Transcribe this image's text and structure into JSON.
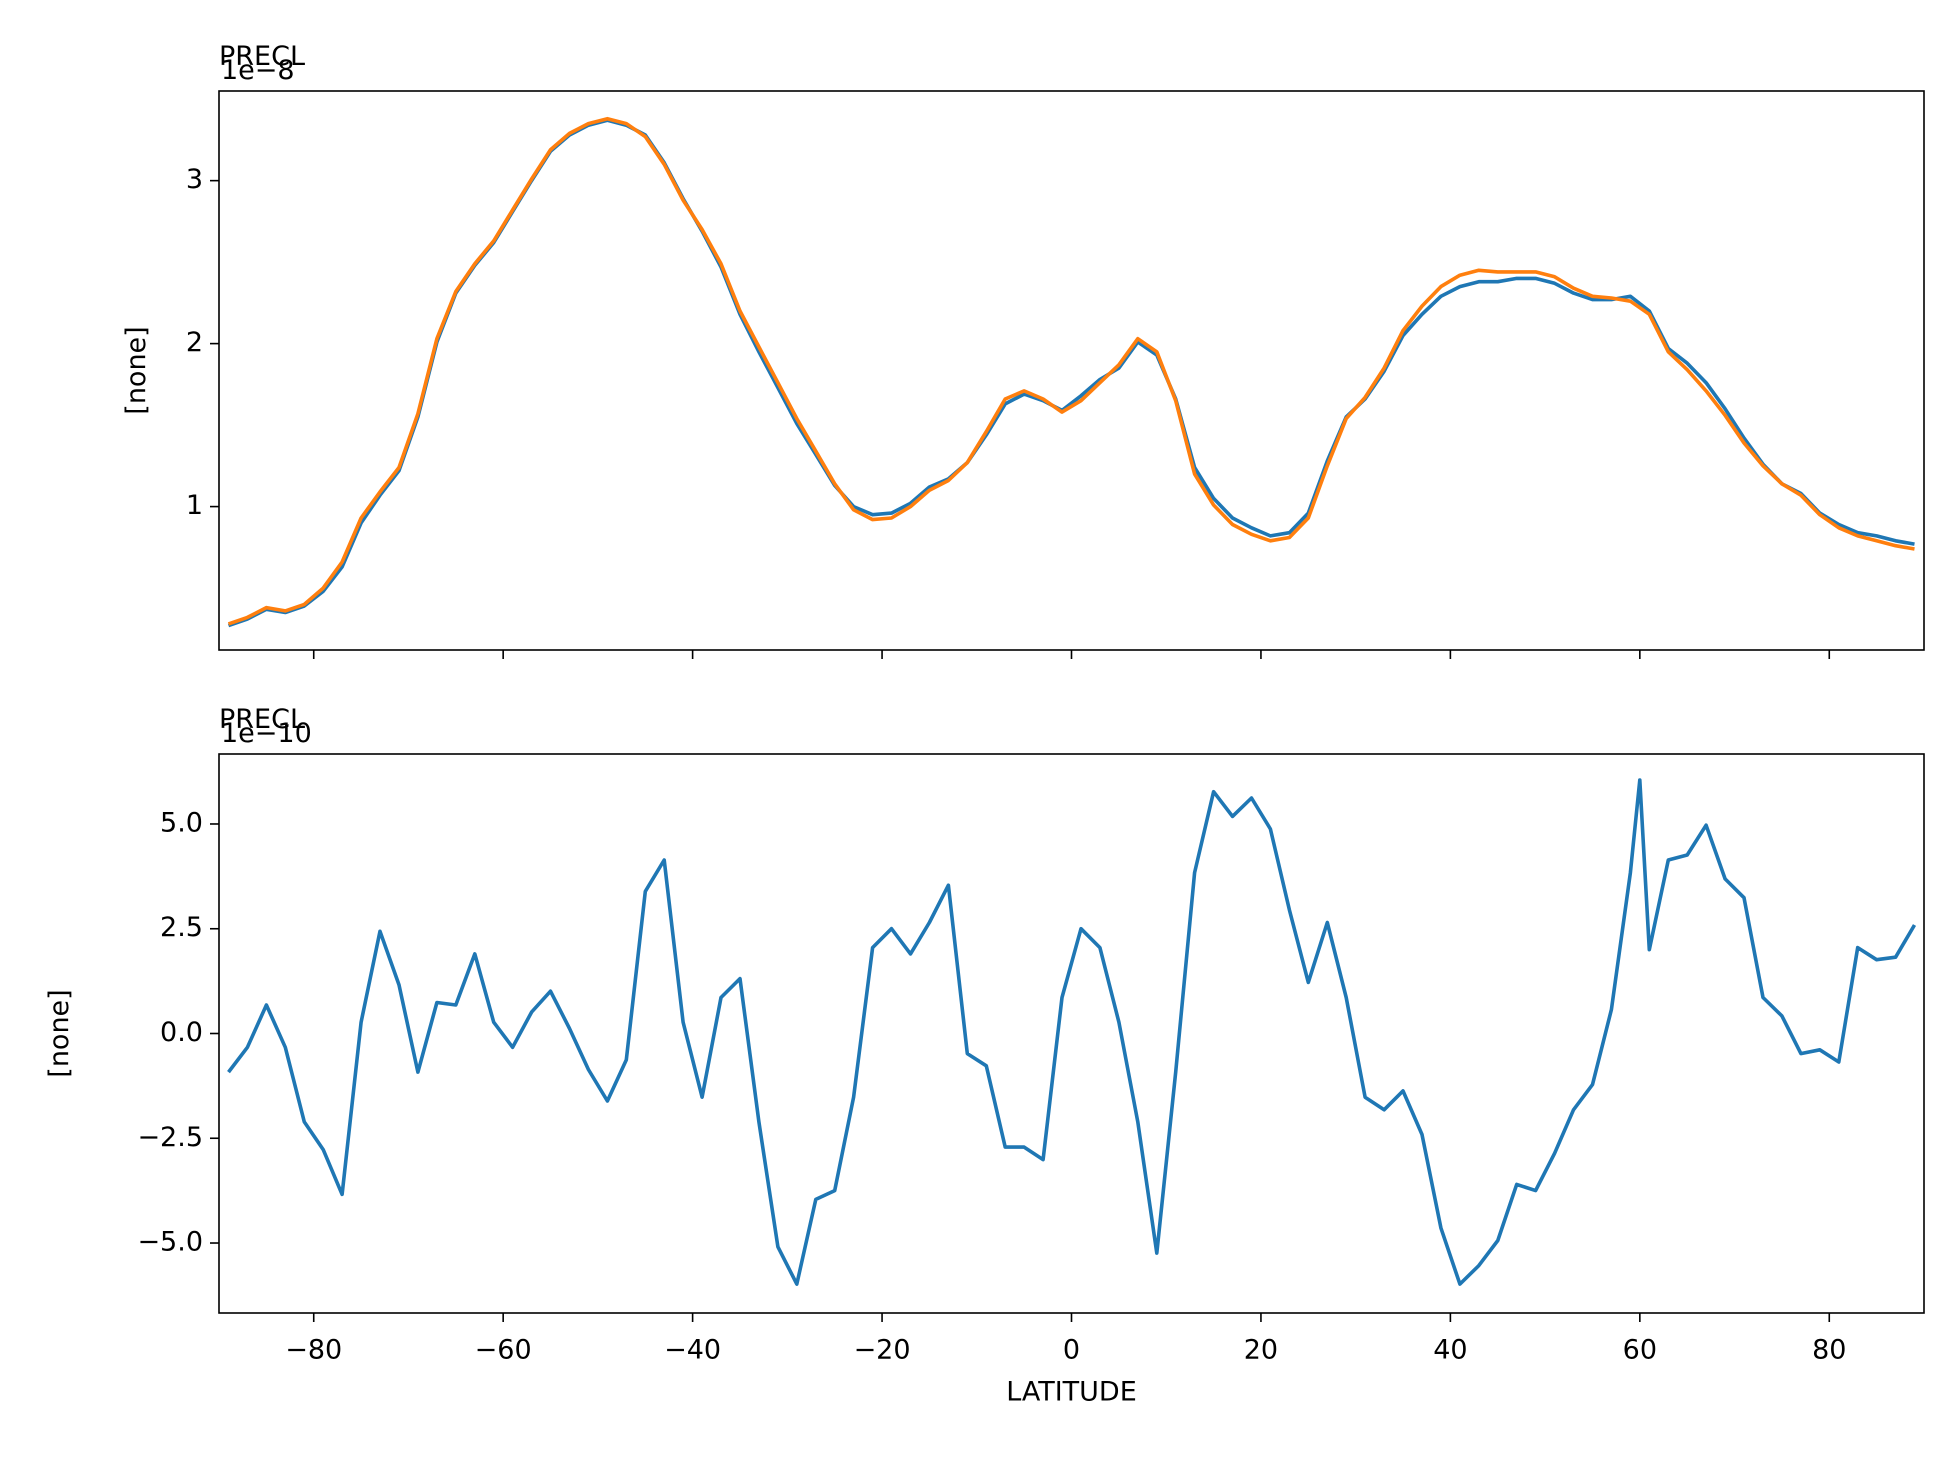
{
  "chart_data": [
    {
      "type": "line",
      "title": "PRECL",
      "offset_label": "1e−8",
      "ylabel": "[none]",
      "x": [
        -89,
        -87,
        -85,
        -83,
        -81,
        -79,
        -77,
        -75,
        -73,
        -71,
        -69,
        -67,
        -65,
        -63,
        -61,
        -59,
        -57,
        -55,
        -53,
        -51,
        -49,
        -47,
        -45,
        -43,
        -41,
        -39,
        -37,
        -35,
        -33,
        -31,
        -29,
        -27,
        -25,
        -23,
        -21,
        -19,
        -17,
        -15,
        -13,
        -11,
        -9,
        -7,
        -5,
        -3,
        -1,
        1,
        3,
        5,
        7,
        9,
        11,
        13,
        15,
        17,
        19,
        21,
        23,
        25,
        27,
        29,
        31,
        33,
        35,
        37,
        39,
        41,
        43,
        45,
        47,
        49,
        51,
        53,
        55,
        57,
        59,
        61,
        63,
        65,
        67,
        69,
        71,
        73,
        75,
        77,
        79,
        81,
        83,
        85,
        87,
        89
      ],
      "series": [
        {
          "color": "#1f77b4",
          "values": [
            0.27,
            0.31,
            0.37,
            0.35,
            0.39,
            0.48,
            0.63,
            0.9,
            1.07,
            1.22,
            1.55,
            2.01,
            2.31,
            2.48,
            2.62,
            2.81,
            3.0,
            3.18,
            3.28,
            3.34,
            3.37,
            3.34,
            3.28,
            3.11,
            2.89,
            2.69,
            2.47,
            2.18,
            1.95,
            1.73,
            1.51,
            1.32,
            1.13,
            1.0,
            0.95,
            0.96,
            1.02,
            1.12,
            1.17,
            1.27,
            1.44,
            1.63,
            1.69,
            1.65,
            1.59,
            1.68,
            1.78,
            1.85,
            2.01,
            1.93,
            1.66,
            1.24,
            1.05,
            0.93,
            0.87,
            0.82,
            0.84,
            0.96,
            1.28,
            1.55,
            1.66,
            1.83,
            2.05,
            2.18,
            2.29,
            2.35,
            2.38,
            2.38,
            2.4,
            2.4,
            2.37,
            2.31,
            2.27,
            2.27,
            2.29,
            2.2,
            1.97,
            1.88,
            1.76,
            1.6,
            1.42,
            1.26,
            1.14,
            1.08,
            0.96,
            0.89,
            0.84,
            0.82,
            0.79,
            0.77
          ]
        },
        {
          "color": "#ff7f0e",
          "values": [
            0.28,
            0.32,
            0.38,
            0.36,
            0.4,
            0.5,
            0.66,
            0.93,
            1.09,
            1.24,
            1.57,
            2.03,
            2.32,
            2.49,
            2.63,
            2.82,
            3.01,
            3.19,
            3.29,
            3.35,
            3.38,
            3.35,
            3.27,
            3.1,
            2.88,
            2.7,
            2.49,
            2.2,
            1.98,
            1.76,
            1.54,
            1.34,
            1.14,
            0.98,
            0.92,
            0.93,
            1.0,
            1.1,
            1.16,
            1.27,
            1.46,
            1.66,
            1.71,
            1.66,
            1.58,
            1.65,
            1.76,
            1.87,
            2.03,
            1.95,
            1.65,
            1.2,
            1.01,
            0.89,
            0.83,
            0.79,
            0.81,
            0.93,
            1.25,
            1.54,
            1.67,
            1.85,
            2.08,
            2.23,
            2.35,
            2.42,
            2.45,
            2.44,
            2.44,
            2.44,
            2.41,
            2.34,
            2.29,
            2.28,
            2.26,
            2.18,
            1.95,
            1.84,
            1.71,
            1.56,
            1.39,
            1.25,
            1.14,
            1.07,
            0.95,
            0.87,
            0.82,
            0.79,
            0.76,
            0.74
          ]
        }
      ],
      "ylim": [
        0.12,
        3.55
      ],
      "yticks": [
        1,
        2,
        3
      ]
    },
    {
      "type": "line",
      "title": "PRECL",
      "offset_label": "1e−10",
      "ylabel": "[none]",
      "xlabel": "LATITUDE",
      "x": [
        -89,
        -87,
        -85,
        -83,
        -81,
        -79,
        -77,
        -75,
        -73,
        -71,
        -69,
        -67,
        -65,
        -63,
        -61,
        -59,
        -57,
        -55,
        -53,
        -51,
        -49,
        -47,
        -45,
        -43,
        -41,
        -39,
        -37,
        -35,
        -33,
        -31,
        -29,
        -27,
        -25,
        -23,
        -21,
        -19,
        -17,
        -15,
        -13,
        -11,
        -9,
        -7,
        -5,
        -3,
        -1,
        1,
        3,
        5,
        7,
        9,
        11,
        13,
        15,
        17,
        19,
        21,
        23,
        25,
        27,
        29,
        31,
        33,
        35,
        37,
        39,
        41,
        43,
        45,
        47,
        49,
        51,
        53,
        55,
        57,
        59,
        60,
        61,
        63,
        65,
        67,
        69,
        71,
        73,
        75,
        77,
        79,
        81,
        83,
        85,
        87,
        89
      ],
      "series": [
        {
          "color": "#1f77b4",
          "values": [
            -0.92,
            -0.33,
            0.68,
            -0.33,
            -2.11,
            -2.77,
            -3.84,
            0.27,
            2.44,
            1.16,
            -0.92,
            0.74,
            0.68,
            1.9,
            0.27,
            -0.33,
            0.51,
            1.01,
            0.12,
            -0.86,
            -1.61,
            -0.63,
            3.39,
            4.14,
            0.27,
            -1.52,
            0.86,
            1.31,
            -2.11,
            -5.09,
            -5.98,
            -3.96,
            -3.75,
            -1.52,
            2.05,
            2.5,
            1.9,
            2.65,
            3.54,
            -0.48,
            -0.77,
            -2.71,
            -2.71,
            -3.01,
            0.86,
            2.5,
            2.05,
            0.27,
            -2.11,
            -5.24,
            -0.92,
            3.84,
            5.77,
            5.18,
            5.62,
            4.88,
            2.95,
            1.22,
            2.65,
            0.86,
            -1.52,
            -1.82,
            -1.37,
            -2.41,
            -4.64,
            -5.98,
            -5.54,
            -4.94,
            -3.6,
            -3.75,
            -2.86,
            -1.82,
            -1.22,
            0.57,
            3.84,
            6.05,
            2.0,
            4.14,
            4.26,
            4.97,
            3.69,
            3.24,
            0.86,
            0.42,
            -0.48,
            -0.39,
            -0.68,
            2.05,
            1.76,
            1.82,
            2.59
          ]
        }
      ],
      "xlim": [
        -90,
        90
      ],
      "xticks": [
        {
          "value": -80,
          "label": "−80"
        },
        {
          "value": -60,
          "label": "−60"
        },
        {
          "value": -40,
          "label": "−40"
        },
        {
          "value": -20,
          "label": "−20"
        },
        0,
        20,
        40,
        60,
        80
      ],
      "ylim": [
        -6.67,
        6.67
      ],
      "yticks": [
        {
          "value": -5,
          "label": "−5.0"
        },
        {
          "value": -2.5,
          "label": "−2.5"
        },
        {
          "value": 0,
          "label": "0.0"
        },
        {
          "value": 2.5,
          "label": "2.5"
        },
        {
          "value": 5,
          "label": "5.0"
        }
      ]
    }
  ]
}
